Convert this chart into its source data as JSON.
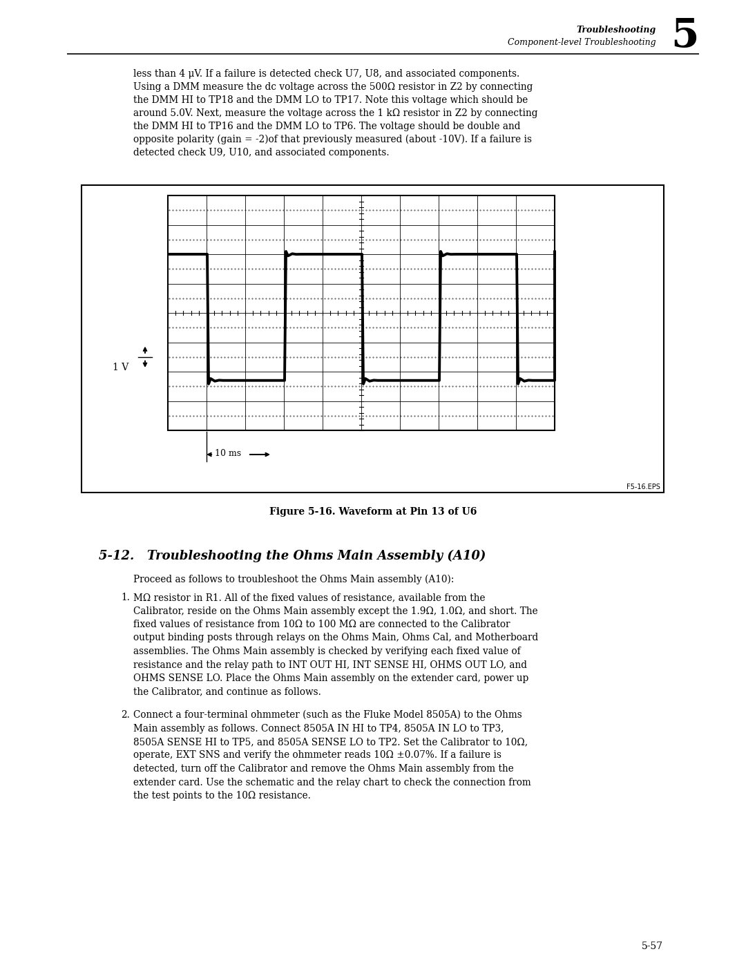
{
  "header_right_line1": "Troubleshooting",
  "header_right_line2": "Component-level Troubleshooting",
  "header_chapter": "5",
  "page_number": "5-57",
  "figure_caption": "Figure 5-16. Waveform at Pin 13 of U6",
  "figure_label": "F5-16.EPS",
  "section_header": "5-12.   Troubleshooting the Ohms Main Assembly (A10)",
  "body_text_top": [
    "less than 4 μV. If a failure is detected check U7, U8, and associated components.",
    "Using a DMM measure the dc voltage across the 500Ω resistor in Z2 by connecting",
    "the DMM HI to TP18 and the DMM LO to TP17. Note this voltage which should be",
    "around 5.0V. Next, measure the voltage across the 1 kΩ resistor in Z2 by connecting",
    "the DMM HI to TP16 and the DMM LO to TP6. The voltage should be double and",
    "opposite polarity (gain = -2)of that previously measured (about -10V). If a failure is",
    "detected check U9, U10, and associated components."
  ],
  "proceed_text": "Proceed as follows to troubleshoot the Ohms Main assembly (A10):",
  "item1_lines": [
    "MΩ resistor in R1. All of the fixed values of resistance, available from the",
    "Calibrator, reside on the Ohms Main assembly except the 1.9Ω, 1.0Ω, and short. The",
    "fixed values of resistance from 10Ω to 100 MΩ are connected to the Calibrator",
    "output binding posts through relays on the Ohms Main, Ohms Cal, and Motherboard",
    "assemblies. The Ohms Main assembly is checked by verifying each fixed value of",
    "resistance and the relay path to INT OUT HI, INT SENSE HI, OHMS OUT LO, and",
    "OHMS SENSE LO. Place the Ohms Main assembly on the extender card, power up",
    "the Calibrator, and continue as follows."
  ],
  "item2_lines": [
    "Connect a four-terminal ohmmeter (such as the Fluke Model 8505A) to the Ohms",
    "Main assembly as follows. Connect 8505A IN HI to TP4, 8505A IN LO to TP3,",
    "8505A SENSE HI to TP5, and 8505A SENSE LO to TP2. Set the Calibrator to 10Ω,",
    "operate, EXT SNS and verify the ohmmeter reads 10Ω ±0.07%. If a failure is",
    "detected, turn off the Calibrator and remove the Ohms Main assembly from the",
    "extender card. Use the schematic and the relay chart to check the connection from",
    "the test points to the 10Ω resistance."
  ],
  "scale_v": "1 V",
  "scale_t": "10 ms",
  "bg_color": "#ffffff",
  "text_color": "#000000",
  "line_color": "#000000"
}
